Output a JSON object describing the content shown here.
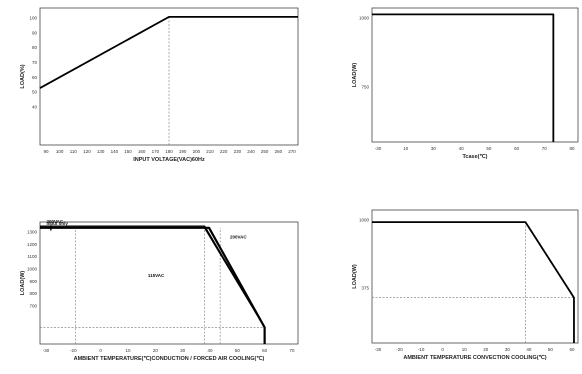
{
  "chart_data": [
    {
      "type": "line",
      "xlabel": "INPUT VOLTAGE(VAC)60Hz",
      "ylabel": "LOAD(%)",
      "x_ticks": [
        "90",
        "100",
        "110",
        "120",
        "130",
        "140",
        "150",
        "160",
        "170",
        "180",
        "190",
        "200",
        "210",
        "220",
        "230",
        "240",
        "250",
        "260",
        "270"
      ],
      "y_ticks": [
        "100",
        "90",
        "80",
        "70",
        "60",
        "50",
        "40"
      ],
      "xlim": [
        85,
        275
      ],
      "ylim": [
        28,
        105
      ],
      "series": [
        {
          "x": [
            85,
            180,
            275
          ],
          "y": [
            60,
            100,
            100
          ]
        }
      ],
      "refs": [
        {
          "x": [
            180,
            180
          ],
          "y": [
            28,
            100
          ]
        }
      ],
      "annotations": []
    },
    {
      "type": "line",
      "xlabel": "Tcase(℃)",
      "ylabel": "LOAD(W)",
      "x_ticks": [
        "-30",
        "10",
        "30",
        "40",
        "50",
        "60",
        "70",
        "80"
      ],
      "y_ticks": [
        "1000",
        "750"
      ],
      "xlim": [
        -35,
        82
      ],
      "ylim": [
        0,
        1050
      ],
      "series": [
        {
          "x": [
            -35,
            68,
            68
          ],
          "y": [
            1000,
            1000,
            0
          ]
        }
      ],
      "refs": [],
      "annotations": []
    },
    {
      "type": "line",
      "xlabel": "AMBIENT TEMPERATURE(℃)CONDUCTION / FORCED AIR COOLING(℃)",
      "ylabel": "LOAD(W)",
      "x_ticks": [
        "-30",
        "-20",
        "0",
        "10",
        "20",
        "30",
        "40",
        "50",
        "60",
        "70"
      ],
      "y_ticks": [
        "1300",
        "1200",
        "1100",
        "1000",
        "900",
        "800",
        "700"
      ],
      "xlim": [
        -36,
        80
      ],
      "ylim": [
        600,
        1335
      ],
      "series": [
        {
          "x": [
            -36,
            40,
            65,
            65
          ],
          "y": [
            1300,
            1300,
            700,
            600
          ]
        },
        {
          "x": [
            -36,
            38,
            65
          ],
          "y": [
            1300,
            1300,
            700
          ]
        },
        {
          "x": [
            -36,
            38,
            65
          ],
          "y": [
            1310,
            1310,
            700
          ]
        }
      ],
      "refs": [
        {
          "x": [
            -20,
            -20
          ],
          "y": [
            600,
            1300
          ]
        },
        {
          "x": [
            38,
            38
          ],
          "y": [
            600,
            1300
          ]
        },
        {
          "x": [
            45,
            45
          ],
          "y": [
            600,
            1300
          ]
        },
        {
          "x": [
            -36,
            65
          ],
          "y": [
            700,
            700
          ]
        }
      ],
      "annotations": [
        {
          "text": "200VAC",
          "x": -34,
          "y": 1330
        },
        {
          "text": "Input only",
          "x": -34,
          "y": 1318
        },
        {
          "text": "200VAC",
          "x": 53,
          "y": 1235
        },
        {
          "text": "115VAC",
          "x": 17,
          "y": 1005
        }
      ]
    },
    {
      "type": "line",
      "xlabel": "AMBIENT TEMPERATURE CONVECTION COOLING(℃)",
      "ylabel": "LOAD(W)",
      "x_ticks": [
        "-30",
        "-20",
        "-10",
        "0",
        "10",
        "20",
        "30",
        "40",
        "50",
        "60"
      ],
      "y_ticks": [
        "1000",
        "375"
      ],
      "xlim": [
        -36,
        66
      ],
      "ylim": [
        0,
        1100
      ],
      "series": [
        {
          "x": [
            -36,
            40,
            64,
            64
          ],
          "y": [
            1000,
            1000,
            375,
            0
          ]
        }
      ],
      "refs": [
        {
          "x": [
            40,
            40
          ],
          "y": [
            0,
            1000
          ]
        },
        {
          "x": [
            -36,
            64
          ],
          "y": [
            375,
            375
          ]
        }
      ],
      "annotations": []
    }
  ]
}
